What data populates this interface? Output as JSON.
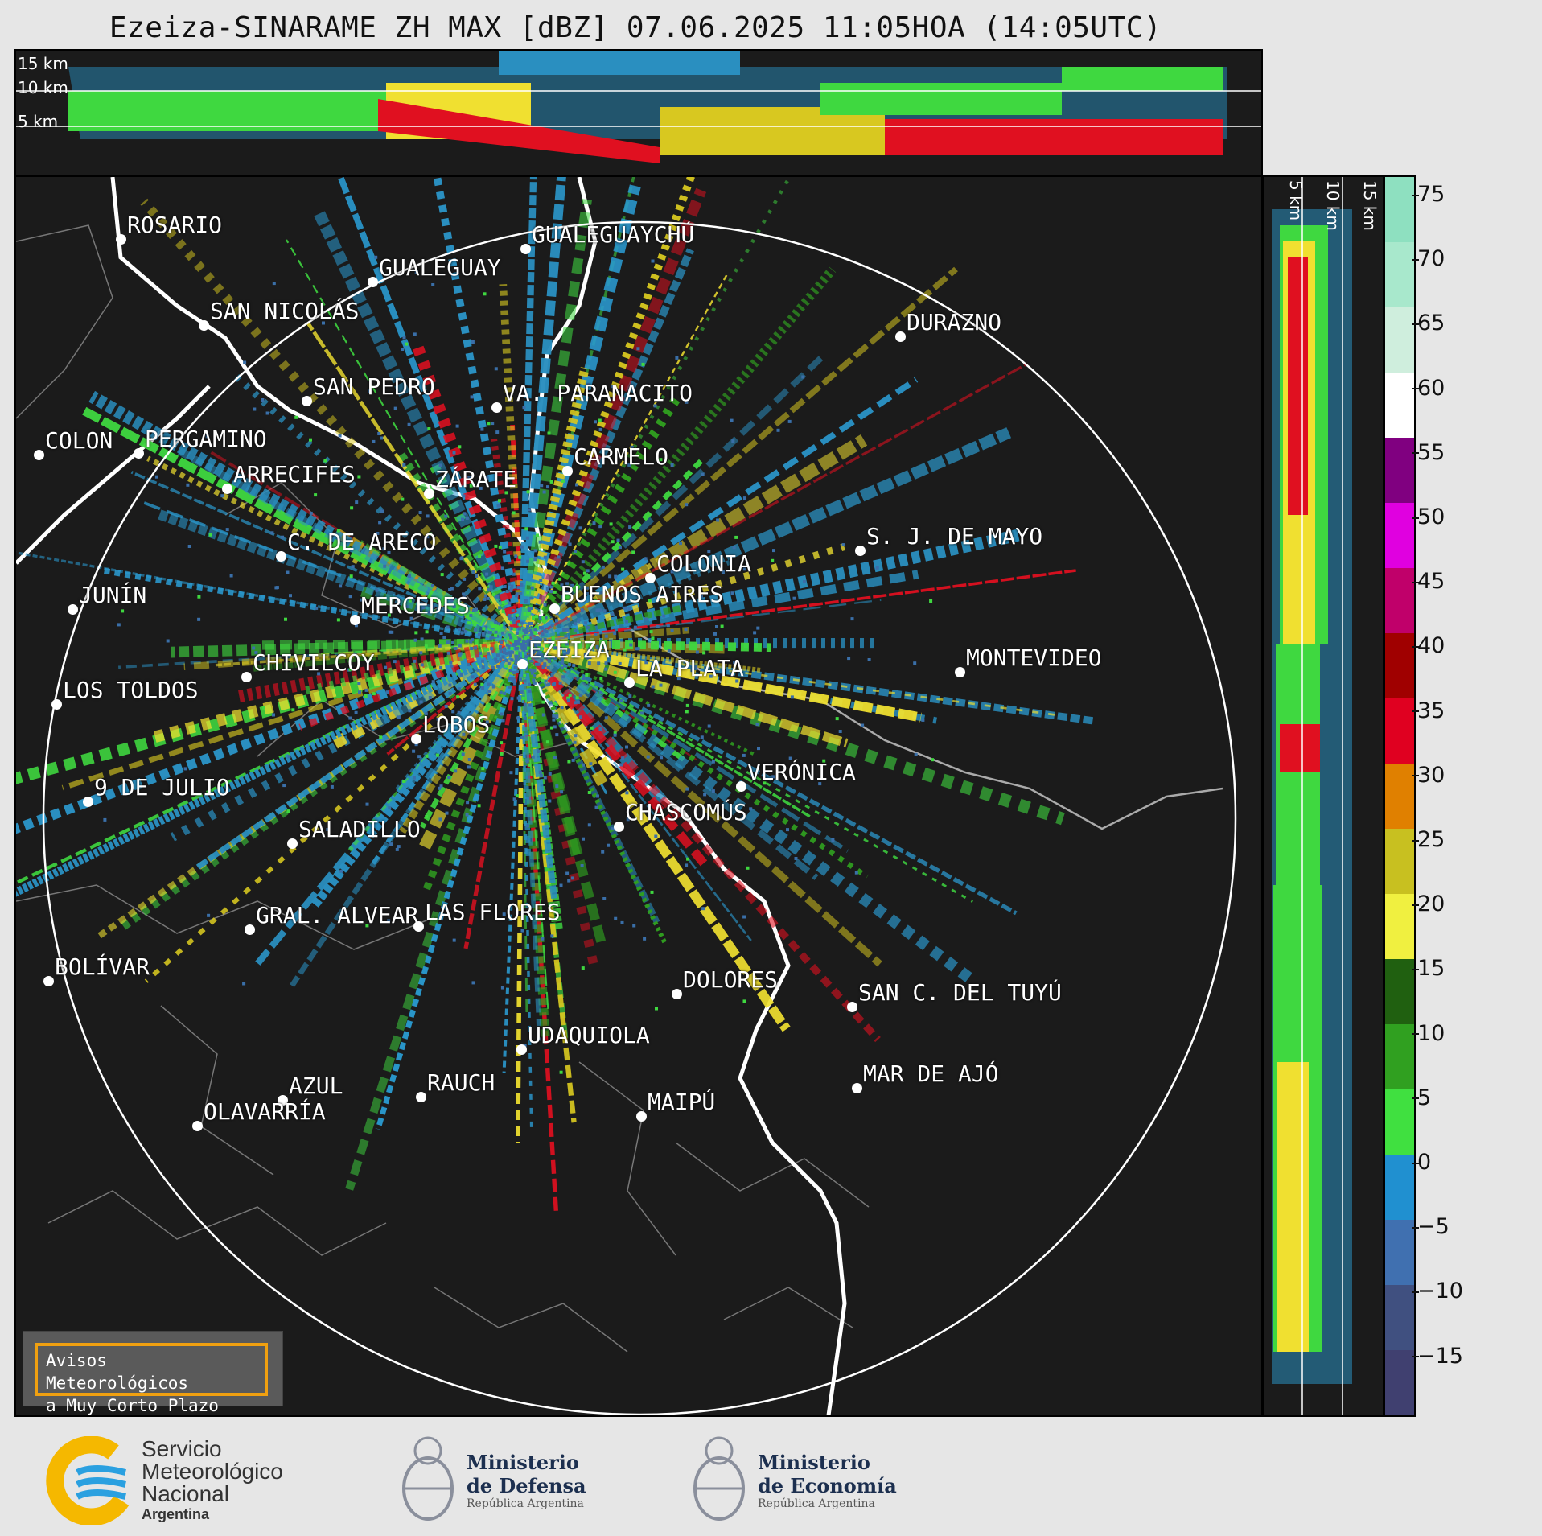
{
  "title": "Ezeiza-SINARAME ZH MAX [dBZ] 07.06.2025 11:05HOA (14:05UTC)",
  "top_axis": {
    "labels": [
      "15 km",
      "10 km",
      "5 km"
    ]
  },
  "side_axis": {
    "labels": [
      "5 km",
      "10 km",
      "15 km"
    ]
  },
  "colorbar": {
    "unit": "dBZ",
    "min": -20,
    "max": 77,
    "ticks": [
      "75",
      "70",
      "65",
      "60",
      "55",
      "50",
      "45",
      "40",
      "35",
      "30",
      "25",
      "20",
      "15",
      "10",
      "5",
      "0",
      "−5",
      "−10",
      "−15"
    ],
    "colors": [
      "#8ee0c0",
      "#a8e8cc",
      "#cfeedd",
      "#ffffff",
      "#800080",
      "#e000e0",
      "#c0006a",
      "#a00000",
      "#e00020",
      "#e08000",
      "#c8c020",
      "#f0f040",
      "#206010",
      "#30a020",
      "#40e040",
      "#2090d0",
      "#4070b0",
      "#405080",
      "#404070"
    ]
  },
  "cities": [
    {
      "name": "ROSARIO"
    },
    {
      "name": "GUALEGUAYCHÚ"
    },
    {
      "name": "GUALEGUAY"
    },
    {
      "name": "SAN NICOLÁS"
    },
    {
      "name": "DURAZNO"
    },
    {
      "name": "SAN PEDRO"
    },
    {
      "name": "VA. PARANACITO"
    },
    {
      "name": "COLON"
    },
    {
      "name": "PERGAMINO"
    },
    {
      "name": "CARMELO"
    },
    {
      "name": "ARRECIFES"
    },
    {
      "name": "ZÁRATE"
    },
    {
      "name": "S. J. DE MAYO"
    },
    {
      "name": "C. DE ARECO"
    },
    {
      "name": "COLONIA"
    },
    {
      "name": "BUENOS AIRES"
    },
    {
      "name": "JUNÍN"
    },
    {
      "name": "MERCEDES"
    },
    {
      "name": "EZEIZA"
    },
    {
      "name": "MONTEVIDEO"
    },
    {
      "name": "CHIVILCOY"
    },
    {
      "name": "LA PLATA"
    },
    {
      "name": "LOS TOLDOS"
    },
    {
      "name": "LOBOS"
    },
    {
      "name": "VERÓNICA"
    },
    {
      "name": "9 DE JULIO"
    },
    {
      "name": "CHASCOMÚS"
    },
    {
      "name": "SALADILLO"
    },
    {
      "name": "GRAL. ALVEAR"
    },
    {
      "name": "LAS FLORES"
    },
    {
      "name": "BOLÍVAR"
    },
    {
      "name": "DOLORES"
    },
    {
      "name": "SAN C. DEL TUYÚ"
    },
    {
      "name": "UDAQUIOLA"
    },
    {
      "name": "MAR DE AJÓ"
    },
    {
      "name": "AZUL"
    },
    {
      "name": "RAUCH"
    },
    {
      "name": "OLAVARRÍA"
    },
    {
      "name": "MAIPÚ"
    }
  ],
  "notice": {
    "line1": "Avisos Meteorológicos",
    "line2": "a Muy Corto Plazo"
  },
  "logos": {
    "smn": {
      "l1": "Servicio",
      "l2": "Meteorológico",
      "l3": "Nacional",
      "l4": "Argentina"
    },
    "defensa": {
      "l1": "Ministerio",
      "l2": "de Defensa",
      "l3": "República Argentina"
    },
    "economia": {
      "l1": "Ministerio",
      "l2": "de Economía",
      "l3": "República Argentina"
    }
  }
}
